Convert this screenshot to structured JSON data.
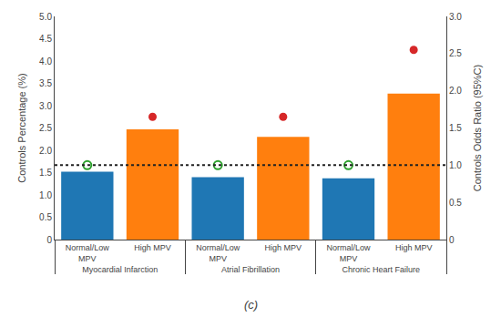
{
  "chart_data": {
    "type": "bar",
    "categories": [
      "Myocardial Infarction",
      "Atrial Fibrillation",
      "Chronic Heart Failure"
    ],
    "series": [
      {
        "name": "Normal/Low\nMPV",
        "values": [
          1.52,
          1.4,
          1.37
        ],
        "odds_ratios": [
          1.0,
          1.0,
          1.0
        ],
        "marker": "circle-open"
      },
      {
        "name": "High MPV",
        "values": [
          2.47,
          2.3,
          3.27
        ],
        "odds_ratios": [
          1.65,
          1.65,
          2.55
        ],
        "marker": "circle"
      }
    ],
    "ylabel": "Controls Percentage (%)",
    "y2label": "Controls Odds Ratio (95%C)",
    "ylim": [
      0,
      5
    ],
    "yticks": [
      0,
      0.5,
      {
        "value": 1.0,
        "label": "1.0"
      },
      1.5,
      {
        "value": 2.0,
        "label": "2.0"
      },
      2.5,
      {
        "value": 3.0,
        "label": "3.0"
      },
      3.5,
      {
        "value": 4.0,
        "label": "4.0"
      },
      4.5,
      {
        "value": 5.0,
        "label": "5.0"
      }
    ],
    "y2lim": [
      0,
      3
    ],
    "y2ticks": [
      0,
      0.5,
      {
        "value": 1.0,
        "label": "1.0"
      },
      1.5,
      {
        "value": 2.0,
        "label": "2.0"
      },
      2.5,
      {
        "value": 3.0,
        "label": "3.0"
      }
    ],
    "reference_line": {
      "axis": "y2",
      "value": 1.0,
      "line_style": "dotted"
    },
    "caption": "(c)",
    "grid": false
  }
}
